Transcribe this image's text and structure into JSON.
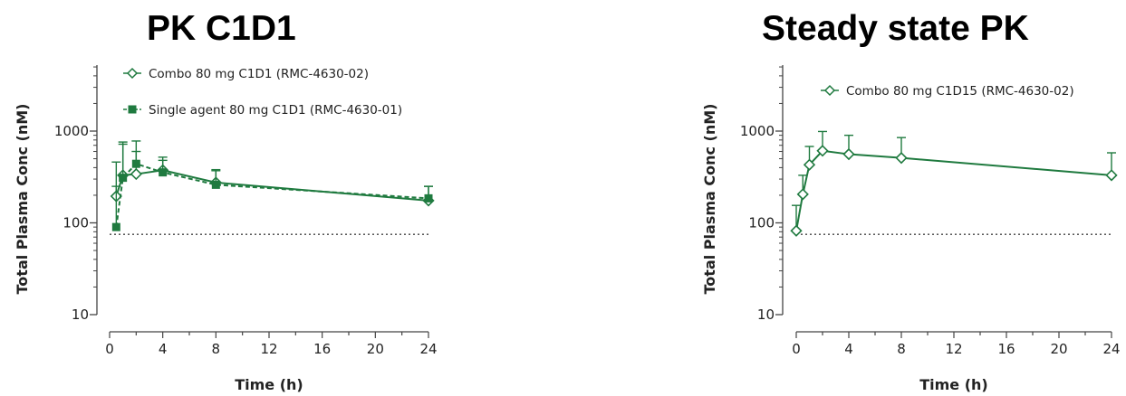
{
  "colors": {
    "series": "#1f7a3f",
    "axis": "#444444",
    "reference_line": "#444444"
  },
  "chart_data": [
    {
      "type": "line",
      "title": "PK C1D1",
      "xlabel": "Time (h)",
      "ylabel": "Total Plasma Conc (nM)",
      "xlim": [
        0,
        24
      ],
      "ylim": [
        10,
        5000
      ],
      "yscale": "log",
      "xticks": [
        "0",
        "4",
        "8",
        "12",
        "16",
        "20",
        "24"
      ],
      "yticks": [
        "10",
        "100",
        "1000"
      ],
      "reference_line_y": 75,
      "legend_position": "top-left",
      "series": [
        {
          "name": "Combo 80 mg C1D1 (RMC-4630-02)",
          "marker": "open-diamond",
          "line": "solid",
          "x": [
            0.5,
            1,
            2,
            4,
            8,
            24
          ],
          "y": [
            195,
            330,
            340,
            375,
            275,
            175
          ],
          "err_upper": [
            460,
            720,
            600,
            520,
            380,
            250
          ]
        },
        {
          "name": "Single agent 80 mg C1D1 (RMC-4630-01)",
          "marker": "filled-square",
          "line": "dashed",
          "x": [
            0.5,
            1,
            2,
            4,
            8,
            24
          ],
          "y": [
            90,
            310,
            440,
            355,
            260,
            185
          ],
          "err_upper": [
            250,
            760,
            780,
            480,
            370,
            250
          ]
        }
      ]
    },
    {
      "type": "line",
      "title": "Steady state PK",
      "xlabel": "Time (h)",
      "ylabel": "Total Plasma Conc (nM)",
      "xlim": [
        0,
        24
      ],
      "ylim": [
        10,
        5000
      ],
      "yscale": "log",
      "xticks": [
        "0",
        "4",
        "8",
        "12",
        "16",
        "20",
        "24"
      ],
      "yticks": [
        "10",
        "100",
        "1000"
      ],
      "reference_line_y": 75,
      "legend_position": "top-left",
      "series": [
        {
          "name": "Combo 80 mg C1D15 (RMC-4630-02)",
          "marker": "open-diamond",
          "line": "solid",
          "x": [
            0,
            0.5,
            1,
            2,
            4,
            8,
            24
          ],
          "y": [
            82,
            205,
            430,
            610,
            560,
            510,
            330
          ],
          "err_upper": [
            155,
            330,
            680,
            990,
            900,
            850,
            580
          ]
        }
      ]
    }
  ]
}
